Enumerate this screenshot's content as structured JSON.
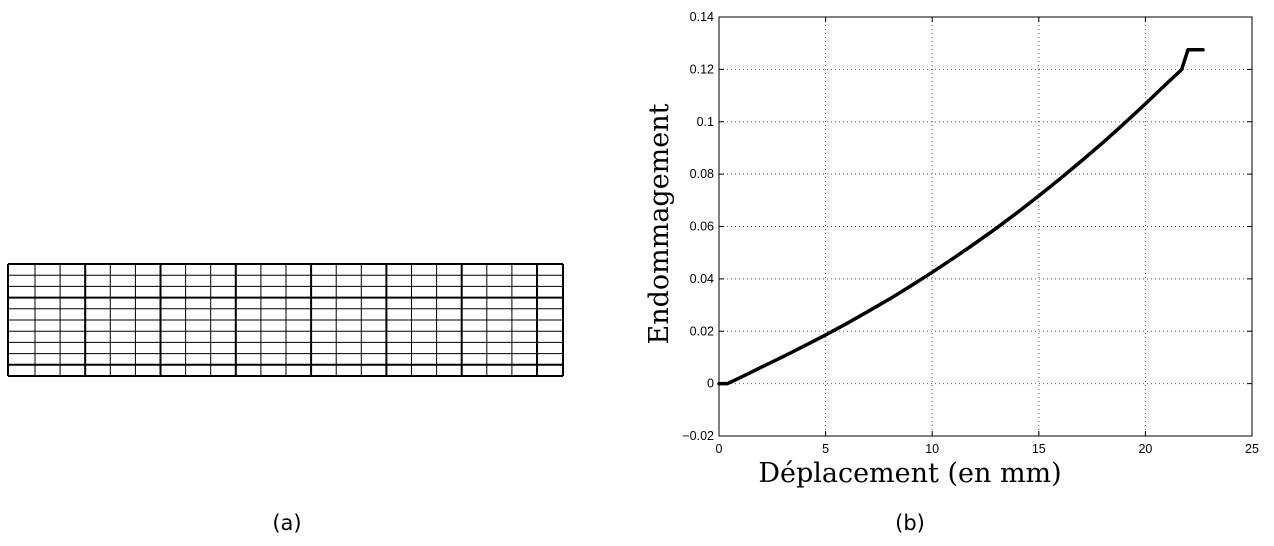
{
  "figure": {
    "captions": {
      "a": "(a)",
      "b": "(b)"
    }
  },
  "mesh": {
    "columns": 22,
    "rows": 10
  },
  "chart_data": {
    "type": "line",
    "title": "",
    "xlabel": "Déplacement (en mm)",
    "ylabel": "Endommagement",
    "xlim": [
      0,
      25
    ],
    "ylim": [
      -0.02,
      0.14
    ],
    "xticks": [
      0,
      5,
      10,
      15,
      20,
      25
    ],
    "yticks": [
      -0.02,
      0,
      0.02,
      0.04,
      0.06,
      0.08,
      0.1,
      0.12,
      0.14
    ],
    "xtick_labels": [
      "0",
      "5",
      "10",
      "15",
      "20",
      "25"
    ],
    "ytick_labels": [
      "−0.02",
      "0",
      "0.02",
      "0.04",
      "0.06",
      "0.08",
      "0.1",
      "0.12",
      "0.14"
    ],
    "grid": true,
    "grid_style": "dotted",
    "series": [
      {
        "color": "#000000",
        "x": [
          0,
          0.4,
          1,
          2,
          3,
          4,
          5,
          6,
          7,
          8,
          9,
          10,
          11,
          12,
          13,
          14,
          15,
          16,
          17,
          18,
          19,
          20,
          21,
          21.7,
          22,
          22.7
        ],
        "y": [
          0,
          0,
          0.0023,
          0.0063,
          0.0103,
          0.0144,
          0.0186,
          0.023,
          0.0276,
          0.0323,
          0.0373,
          0.0425,
          0.0479,
          0.0535,
          0.0593,
          0.0654,
          0.0717,
          0.0782,
          0.085,
          0.092,
          0.0993,
          0.1068,
          0.1146,
          0.1199,
          0.1275,
          0.1275
        ]
      }
    ]
  }
}
